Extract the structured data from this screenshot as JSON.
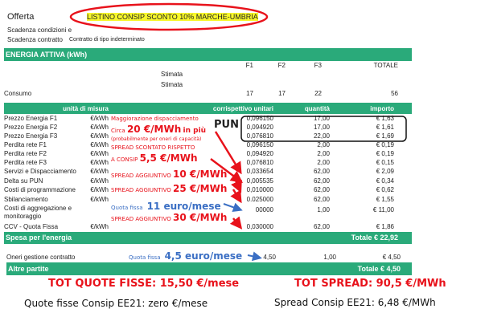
{
  "header": {
    "offerta_label": "Offerta",
    "offerta_value": "LISTINO CONSIP SCONTO 10% MARCHE-UMBRIA",
    "scad_cond_label": "Scadenza condizioni e",
    "scad_contr_label": "Scadenza contratto",
    "scad_contr_value": "Contratto di tipo indeterminato"
  },
  "energia": {
    "title": "ENERGIA ATTIVA (kWh)",
    "cols": [
      "F1",
      "F2",
      "F3",
      "TOTALE"
    ],
    "stimata1": "Stimata",
    "stimata2": "Stimata",
    "consumo_label": "Consumo",
    "consumo": [
      "17",
      "17",
      "22",
      "56"
    ]
  },
  "table": {
    "headers": [
      "unità di misura",
      "corrispettivo unitari",
      "quantità",
      "importo"
    ],
    "rows": [
      [
        "Prezzo Energia F1",
        "€/kWh",
        "0,096150",
        "17,00",
        "€ 1,63"
      ],
      [
        "Prezzo Energia F2",
        "€/kWh",
        "0,094920",
        "17,00",
        "€ 1,61"
      ],
      [
        "Prezzo Energia F3",
        "€/kWh",
        "0,076810",
        "22,00",
        "€ 1,69"
      ],
      [
        "Perdita rete F1",
        "€/kWh",
        "0,096150",
        "2,00",
        "€ 0,19"
      ],
      [
        "Perdita rete F2",
        "€/kWh",
        "0,094920",
        "2,00",
        "€ 0,19"
      ],
      [
        "Perdita rete F3",
        "€/kWh",
        "0,076810",
        "2,00",
        "€ 0,15"
      ],
      [
        "Servizi e Dispacciamento",
        "€/kWh",
        "0,033654",
        "62,00",
        "€ 2,09"
      ],
      [
        "Delta su PUN",
        "€/kWh",
        "0,005535",
        "62,00",
        "€ 0,34"
      ],
      [
        "Costi di programmazione",
        "€/kWh",
        "0,010000",
        "62,00",
        "€ 0,62"
      ],
      [
        "Sbilanciamento",
        "€/kWh",
        "0.025000",
        "62,00",
        "€ 1,55"
      ],
      [
        "Costi di aggregazione e monitoraggio",
        "",
        "00000",
        "1,00",
        "€ 11,00"
      ],
      [
        "CCV - Quota Fissa",
        "€/kWh",
        "0,030000",
        "62,00",
        "€ 1,86"
      ]
    ],
    "spesa_label": "Spesa per l'energia",
    "spesa_total": "Totale € 22,92",
    "oneri": [
      "Oneri gestione contratto",
      "4,50",
      "1,00",
      "€ 4,50"
    ],
    "altre_label": "Altre partite",
    "altre_total": "Totale € 4,50"
  },
  "annotations": {
    "pun": "PUN",
    "magg": "Maggiorazione dispacciamento",
    "circa_pre": "Circa",
    "circa_big": "20 €/MWh",
    "circa_post": "in più",
    "probab": "(probabilmente per oneri di capacità)",
    "scont1": "SPREAD SCONTATO RISPETTO",
    "scont2": "A CONSIP",
    "scont_big": "5,5 €/MWh",
    "agg": "SPREAD AGGIUNTIVO",
    "agg10": "10 €/MWh",
    "agg25": "25 €/MWh",
    "agg30": "30 €/MWh",
    "quota": "Quota fissa",
    "quota11": "11 euro/mese",
    "quota45": "4,5 euro/mese",
    "tot_quote": "TOT QUOTE FISSE: 15,50 €/mese",
    "tot_spread": "TOT SPREAD: 90,5 €/MWh",
    "consip_quote": "Quote fisse Consip EE21: zero €/mese",
    "consip_spread": "Spread Consip EE21: 6,48 €/MWh"
  },
  "colors": {
    "green": "#2aaa7a",
    "red": "#e8121b",
    "blue": "#3b6fc4",
    "highlight": "#f7f72a"
  }
}
